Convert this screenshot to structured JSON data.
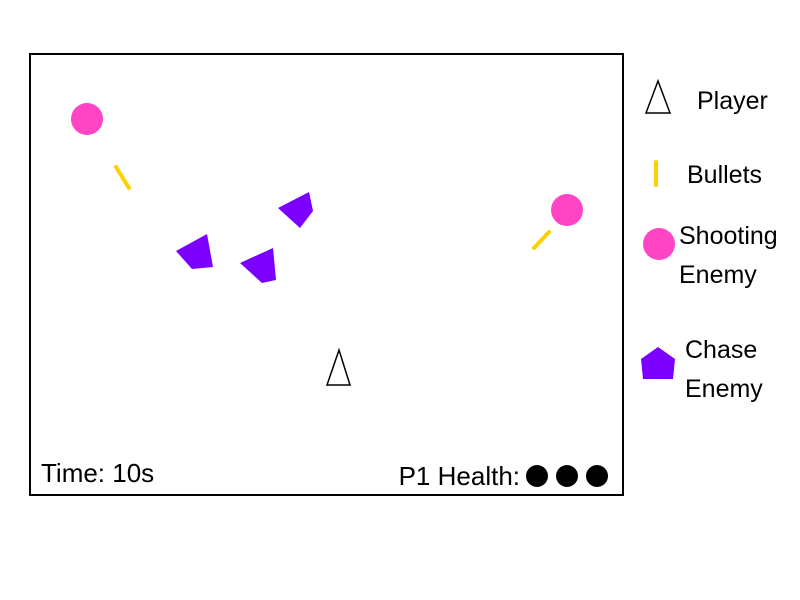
{
  "hud": {
    "time_text": "Time: 10s",
    "health_label": "P1 Health:",
    "health_count": 3
  },
  "legend": {
    "player": "Player",
    "bullets": "Bullets",
    "shooting_enemy": "Shooting\nEnemy",
    "chase_enemy": "Chase\nEnemy"
  },
  "colors": {
    "shooting_enemy": "#ff44c4",
    "chase_enemy": "#7c00ff",
    "bullet": "#ffd000",
    "player_outline": "#000000",
    "arena_border": "#000000"
  }
}
